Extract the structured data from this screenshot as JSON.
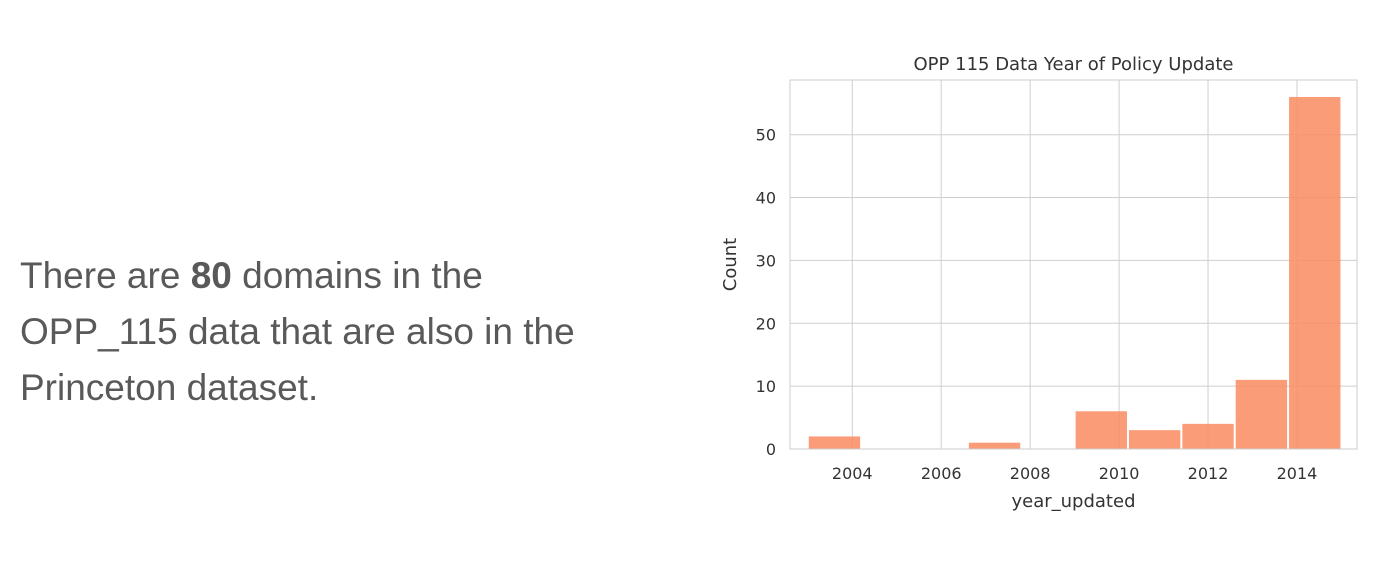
{
  "text": {
    "line1_pre": "There are ",
    "count": "80",
    "line1_post": " domains in the",
    "line2": "OPP_115 data that are also in the",
    "line3": "Princeton dataset."
  },
  "chart_data": {
    "type": "bar",
    "title": "OPP 115 Data Year of Policy Update",
    "xlabel": "year_updated",
    "ylabel": "Count",
    "bar_color": "#fa8b61",
    "grid_color": "#cfcfcf",
    "grid": true,
    "xlim": [
      2002.6,
      2015.35
    ],
    "ylim": [
      0,
      58.7
    ],
    "xticks": [
      2004,
      2006,
      2008,
      2010,
      2012,
      2014
    ],
    "yticks": [
      0,
      10,
      20,
      30,
      40,
      50
    ],
    "bins": [
      {
        "x0": 2003.0,
        "x1": 2004.2,
        "value": 2
      },
      {
        "x0": 2004.2,
        "x1": 2005.4,
        "value": 0
      },
      {
        "x0": 2005.4,
        "x1": 2006.6,
        "value": 0
      },
      {
        "x0": 2006.6,
        "x1": 2007.8,
        "value": 1
      },
      {
        "x0": 2007.8,
        "x1": 2009.0,
        "value": 0
      },
      {
        "x0": 2009.0,
        "x1": 2010.2,
        "value": 6
      },
      {
        "x0": 2010.2,
        "x1": 2011.4,
        "value": 3
      },
      {
        "x0": 2011.4,
        "x1": 2012.6,
        "value": 4
      },
      {
        "x0": 2012.6,
        "x1": 2013.8,
        "value": 11
      },
      {
        "x0": 2013.8,
        "x1": 2015.0,
        "value": 56
      }
    ]
  }
}
